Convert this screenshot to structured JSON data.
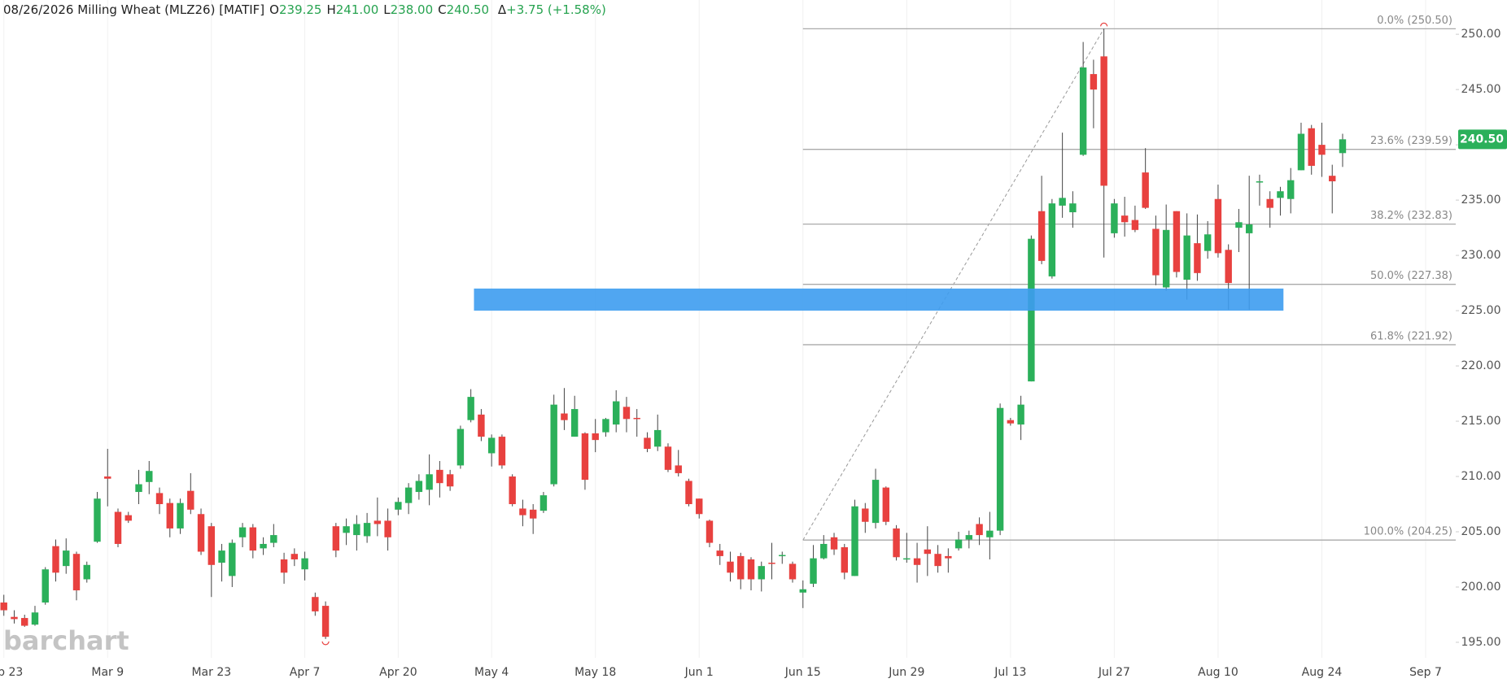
{
  "header": {
    "date": "08/26/2026",
    "name": "Milling Wheat (MLZ26) [MATIF]",
    "fields": [
      {
        "key": "O",
        "text": "239.25"
      },
      {
        "key": "H",
        "text": "241.00"
      },
      {
        "key": "L",
        "text": "238.00"
      },
      {
        "key": "C",
        "text": "240.50"
      }
    ],
    "change_key": "Δ",
    "change": "+3.75 (+1.58%)"
  },
  "chart_data": {
    "type": "candlestick",
    "watermark": "barchart",
    "colors": {
      "up": "#2bb05a",
      "down": "#e8413f"
    },
    "xlim": [
      -0.37,
      139.9
    ],
    "ylim": [
      193.6,
      253.1
    ],
    "xticks": [
      {
        "value": 0,
        "label": "Feb 23"
      },
      {
        "value": 10,
        "label": "Mar 9"
      },
      {
        "value": 20,
        "label": "Mar 23"
      },
      {
        "value": 29,
        "label": "Apr 7"
      },
      {
        "value": 38,
        "label": "Apr 20"
      },
      {
        "value": 47,
        "label": "May 4"
      },
      {
        "value": 57,
        "label": "May 18"
      },
      {
        "value": 67,
        "label": "Jun 1"
      },
      {
        "value": 77,
        "label": "Jun 15"
      },
      {
        "value": 87,
        "label": "Jun 29"
      },
      {
        "value": 97,
        "label": "Jul 13"
      },
      {
        "value": 107,
        "label": "Jul 27"
      },
      {
        "value": 117,
        "label": "Aug 10"
      },
      {
        "value": 127,
        "label": "Aug 24"
      },
      {
        "value": 137,
        "label": "Sep 7"
      }
    ],
    "yticks": [
      {
        "value": 195,
        "label": "195.00"
      },
      {
        "value": 200,
        "label": "200.00"
      },
      {
        "value": 205,
        "label": "205.00"
      },
      {
        "value": 210,
        "label": "210.00"
      },
      {
        "value": 215,
        "label": "215.00"
      },
      {
        "value": 220,
        "label": "220.00"
      },
      {
        "value": 225,
        "label": "225.00"
      },
      {
        "value": 230,
        "label": "230.00"
      },
      {
        "value": 235,
        "label": "235.00"
      },
      {
        "value": 240,
        "label": "240.00"
      },
      {
        "value": 245,
        "label": "245.00"
      },
      {
        "value": 250,
        "label": "250.00"
      }
    ],
    "open": [
      198.6,
      197.3,
      197.2,
      196.6,
      198.6,
      203.7,
      201.9,
      203.0,
      200.7,
      204.1,
      210.0,
      206.8,
      206.5,
      208.6,
      209.5,
      208.5,
      207.6,
      205.3,
      208.7,
      206.6,
      205.5,
      202.2,
      201.0,
      204.5,
      205.4,
      203.5,
      204.0,
      202.5,
      203.0,
      201.6,
      199.1,
      198.3,
      205.5,
      204.9,
      204.7,
      204.6,
      206.0,
      206.0,
      207.0,
      207.6,
      208.6,
      208.8,
      210.6,
      210.2,
      211.0,
      215.1,
      215.6,
      212.1,
      213.6,
      210.0,
      207.1,
      207.0,
      206.9,
      209.3,
      215.7,
      213.6,
      213.9,
      213.9,
      214.0,
      214.7,
      216.3,
      215.3,
      213.5,
      212.7,
      212.7,
      211.0,
      209.6,
      208.0,
      206.0,
      203.3,
      202.3,
      202.8,
      202.5,
      200.7,
      202.2,
      202.8,
      202.1,
      199.5,
      200.3,
      202.6,
      204.5,
      203.6,
      201.0,
      207.1,
      205.8,
      209.0,
      205.3,
      202.5,
      202.6,
      203.4,
      203.0,
      202.8,
      203.5,
      204.3,
      205.7,
      204.5,
      205.1,
      215.1,
      214.7,
      218.6,
      234.0,
      228.1,
      234.5,
      233.9,
      239.1,
      246.4,
      248.0,
      232.0,
      233.6,
      233.2,
      237.5,
      232.4,
      227.1,
      234.0,
      227.8,
      231.1,
      230.4,
      235.1,
      230.5,
      232.5,
      232.0,
      236.6,
      235.1,
      235.2,
      235.1,
      237.7,
      241.5,
      240.0,
      237.2,
      239.25
    ],
    "high": [
      199.3,
      197.9,
      197.5,
      198.3,
      201.8,
      204.3,
      204.4,
      203.2,
      202.3,
      208.6,
      212.5,
      207.1,
      206.8,
      210.6,
      211.4,
      209.0,
      208.0,
      208.0,
      210.3,
      207.1,
      205.8,
      203.9,
      204.3,
      205.8,
      205.7,
      204.5,
      205.7,
      203.1,
      203.5,
      203.2,
      199.5,
      198.7,
      205.8,
      206.2,
      206.5,
      206.7,
      208.1,
      207.1,
      208.1,
      209.4,
      210.2,
      212.0,
      211.4,
      210.6,
      214.6,
      217.9,
      216.1,
      213.8,
      213.8,
      210.2,
      207.9,
      207.5,
      208.6,
      217.4,
      218.0,
      217.3,
      214.0,
      215.2,
      215.3,
      217.8,
      217.2,
      216.1,
      214.0,
      215.6,
      213.0,
      212.4,
      209.8,
      208.0,
      206.1,
      203.9,
      203.2,
      203.1,
      202.7,
      202.3,
      204.0,
      203.2,
      202.3,
      200.6,
      203.8,
      204.7,
      204.9,
      203.9,
      207.9,
      207.6,
      210.7,
      209.1,
      205.6,
      204.9,
      204.0,
      205.5,
      203.8,
      203.5,
      205.0,
      205.1,
      206.3,
      206.8,
      216.6,
      215.3,
      217.3,
      231.8,
      237.2,
      235.1,
      241.1,
      235.8,
      249.3,
      247.7,
      250.5,
      235.1,
      235.3,
      234.5,
      239.7,
      233.6,
      234.6,
      234.0,
      233.8,
      233.7,
      233.1,
      236.4,
      231.0,
      234.2,
      237.2,
      237.3,
      235.8,
      236.2,
      237.9,
      242.0,
      241.8,
      242.0,
      238.2,
      241.0
    ],
    "low": [
      197.4,
      196.7,
      196.4,
      196.5,
      198.4,
      200.5,
      201.2,
      198.8,
      200.4,
      204.0,
      207.3,
      203.6,
      205.8,
      207.5,
      208.4,
      206.6,
      204.5,
      204.8,
      206.6,
      202.9,
      199.1,
      200.5,
      200.0,
      203.6,
      202.6,
      202.9,
      203.6,
      200.3,
      201.9,
      200.6,
      197.4,
      195.3,
      202.7,
      203.8,
      203.3,
      204.0,
      204.6,
      203.3,
      206.5,
      206.6,
      207.9,
      207.4,
      208.1,
      208.7,
      210.7,
      214.9,
      213.2,
      210.9,
      210.7,
      207.3,
      205.5,
      204.8,
      206.7,
      209.1,
      214.2,
      213.6,
      208.8,
      212.2,
      213.6,
      214.0,
      214.0,
      213.6,
      212.2,
      212.3,
      210.4,
      210.0,
      207.3,
      206.2,
      203.6,
      202.0,
      200.5,
      199.8,
      199.7,
      199.6,
      200.7,
      202.1,
      200.4,
      198.1,
      200.0,
      202.5,
      202.9,
      200.7,
      201.0,
      204.9,
      205.3,
      205.6,
      202.4,
      202.2,
      200.4,
      201.0,
      201.3,
      201.3,
      203.3,
      203.5,
      203.8,
      202.5,
      204.7,
      214.6,
      213.3,
      218.6,
      229.2,
      227.9,
      233.4,
      232.5,
      239.0,
      241.5,
      229.8,
      231.6,
      231.7,
      232.1,
      234.2,
      227.3,
      226.8,
      228.0,
      226.0,
      227.7,
      229.7,
      229.8,
      225.1,
      230.3,
      225.1,
      234.5,
      232.5,
      233.6,
      233.8,
      237.7,
      237.3,
      237.1,
      233.8,
      238.0
    ],
    "close": [
      197.9,
      197.1,
      196.5,
      197.7,
      201.6,
      201.3,
      203.3,
      199.7,
      202.0,
      208.0,
      209.8,
      203.9,
      206.0,
      209.3,
      210.5,
      207.5,
      205.3,
      207.6,
      207.0,
      203.2,
      202.0,
      203.3,
      204.0,
      205.4,
      203.3,
      203.9,
      204.7,
      201.3,
      202.5,
      202.6,
      197.8,
      195.5,
      203.3,
      205.5,
      205.7,
      205.8,
      205.7,
      204.5,
      207.7,
      209.0,
      209.6,
      210.2,
      209.4,
      209.1,
      214.3,
      217.2,
      213.6,
      213.5,
      211.0,
      207.5,
      206.5,
      206.2,
      208.3,
      216.5,
      215.1,
      216.1,
      209.7,
      213.3,
      215.2,
      216.8,
      215.2,
      215.2,
      212.5,
      214.2,
      210.6,
      210.3,
      207.5,
      206.6,
      204.0,
      202.8,
      201.3,
      200.7,
      200.7,
      201.9,
      202.1,
      202.9,
      200.7,
      199.8,
      202.6,
      203.9,
      203.4,
      201.3,
      207.3,
      205.9,
      209.7,
      205.9,
      202.7,
      202.6,
      202.0,
      203.0,
      201.9,
      202.6,
      204.3,
      204.7,
      204.7,
      205.1,
      216.2,
      214.8,
      216.5,
      231.5,
      229.5,
      234.7,
      235.2,
      234.7,
      247.0,
      245.0,
      236.3,
      234.7,
      233.0,
      232.3,
      234.3,
      228.2,
      232.3,
      228.5,
      231.8,
      228.4,
      231.9,
      230.2,
      227.5,
      233.0,
      232.8,
      236.7,
      234.3,
      235.8,
      236.8,
      241.0,
      238.1,
      239.1,
      236.7,
      240.5
    ],
    "last_price_label": "240.50",
    "zone": {
      "x": [
        45.3,
        123.3
      ],
      "values": [
        225.0,
        227.0
      ],
      "color": "#3d9cf0"
    },
    "trendline": {
      "x": [
        77,
        106
      ],
      "values": [
        204.25,
        250.5
      ]
    },
    "fibonacci": [
      {
        "label": "0.0% (250.50)",
        "value": 250.5
      },
      {
        "label": "23.6% (239.59)",
        "value": 239.59
      },
      {
        "label": "38.2% (232.83)",
        "value": 232.83
      },
      {
        "label": "50.0% (227.38)",
        "value": 227.38
      },
      {
        "label": "61.8% (221.92)",
        "value": 221.92
      },
      {
        "label": "100.0% (204.25)",
        "value": 204.25
      }
    ]
  }
}
